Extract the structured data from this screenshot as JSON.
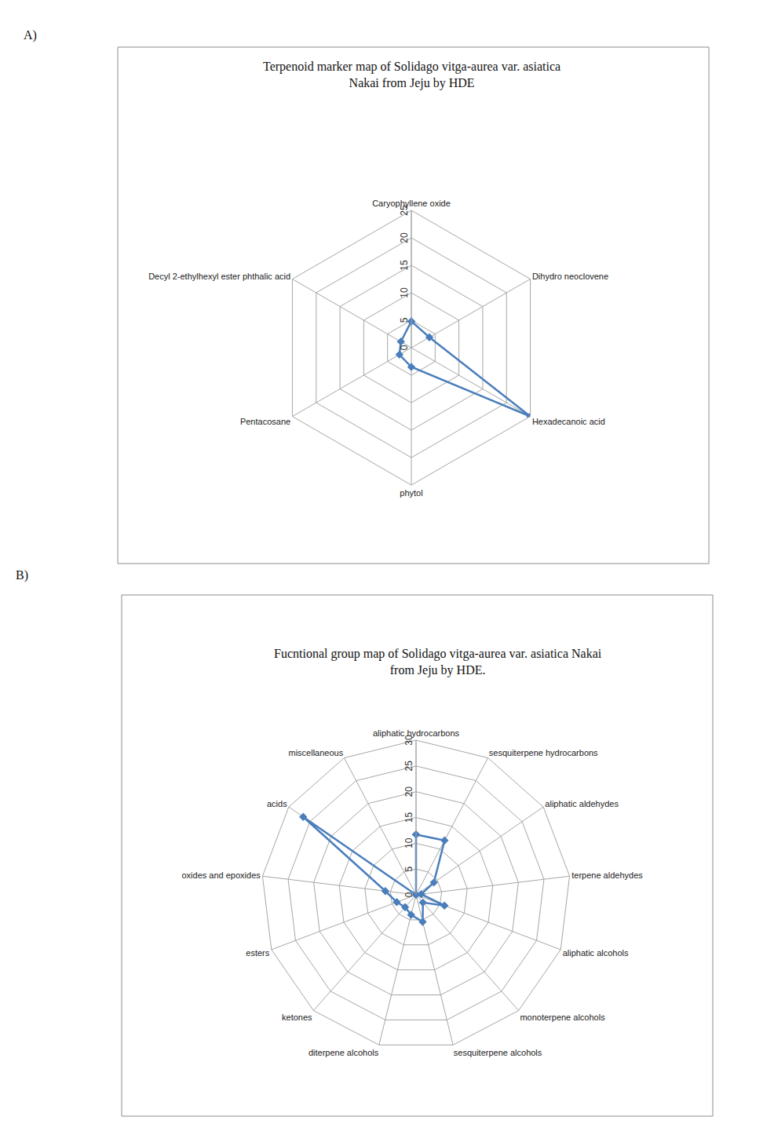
{
  "chart_data": [
    {
      "type": "radar",
      "panel_label": "A)",
      "title": "Terpenoid marker map of Solidago vitga-aurea var. asiatica Nakai from Jeju by HDE",
      "categories": [
        "Caryophyllene oxide",
        "Dihydro neoclovene",
        "Hexadecanoic acid",
        "phytol",
        "Pentacosane",
        "Decyl 2-ethylhexyl ester phthalic acid"
      ],
      "values": [
        4.8,
        3.8,
        25,
        3.5,
        2.5,
        2.2
      ],
      "color": "#4a7ebb",
      "marker": "diamond",
      "line_style": "solid",
      "ylim": [
        0,
        25
      ],
      "yticks": [
        0,
        5,
        10,
        15,
        20,
        25
      ],
      "grid": true
    },
    {
      "type": "radar",
      "panel_label": "B)",
      "title": "Fucntional group map of Solidago vitga-aurea var. asiatica Nakai from Jeju by HDE.",
      "categories": [
        "aliphatic hydrocarbons",
        "sesquiterpene hydrocarbons",
        "aliphatic aldehydes",
        "terpene aldehydes",
        "aliphatic alcohols",
        "monoterpene alcohols",
        "sesquiterpene alcohols",
        "diterpene alcohols",
        "ketones",
        "esters",
        "oxides and epoxides",
        "acids",
        "miscellaneous"
      ],
      "values": [
        11.7,
        11.9,
        4.2,
        1,
        5.9,
        2,
        5.4,
        4,
        3.2,
        4,
        6,
        26.6,
        0
      ],
      "color": "#4a7ebb",
      "marker": "diamond",
      "line_style": "solid",
      "ylim": [
        0,
        30
      ],
      "yticks": [
        0,
        5,
        10,
        15,
        20,
        25,
        30
      ],
      "grid": true
    }
  ]
}
